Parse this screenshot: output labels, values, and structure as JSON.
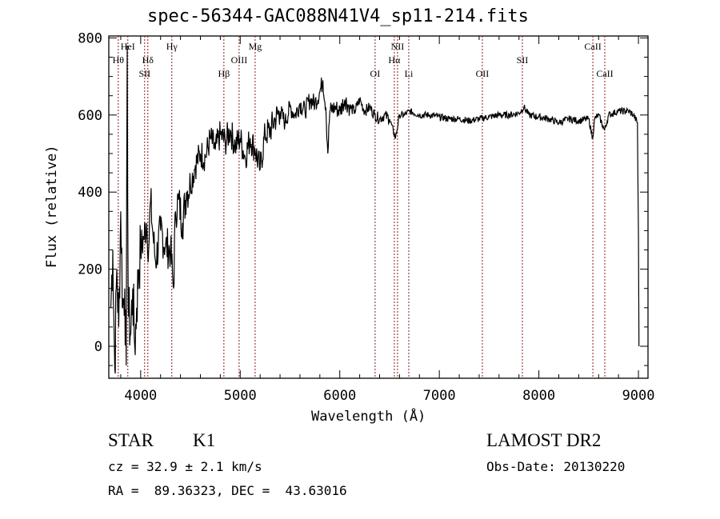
{
  "chart_data": {
    "type": "line",
    "title": "spec-56344-GAC088N41V4_sp11-214.fits",
    "xlabel": "Wavelength (Å)",
    "ylabel": "Flux (relative)",
    "xlim": [
      3680,
      9096
    ],
    "ylim": [
      -83,
      805
    ],
    "x_ticks": [
      4000,
      5000,
      6000,
      7000,
      8000,
      9000
    ],
    "x_tick_labels": [
      "4000",
      "5000",
      "6000",
      "7000",
      "8000",
      "9000"
    ],
    "y_ticks": [
      0,
      200,
      400,
      600,
      800
    ],
    "y_tick_labels": [
      "0",
      "200",
      "400",
      "600",
      "800"
    ],
    "grid": false,
    "series": [
      {
        "name": "spectrum",
        "color": "#000000",
        "x": [
          3700,
          3720,
          3740,
          3760,
          3780,
          3800,
          3820,
          3840,
          3855,
          3865,
          3875,
          3900,
          3920,
          3940,
          3960,
          3980,
          4000,
          4030,
          4060,
          4080,
          4100,
          4120,
          4150,
          4200,
          4250,
          4300,
          4330,
          4350,
          4380,
          4420,
          4460,
          4500,
          4550,
          4600,
          4650,
          4700,
          4750,
          4800,
          4850,
          4900,
          4950,
          5000,
          5050,
          5100,
          5150,
          5200,
          5250,
          5300,
          5350,
          5400,
          5450,
          5500,
          5550,
          5600,
          5650,
          5700,
          5750,
          5800,
          5830,
          5860,
          5880,
          5900,
          5950,
          6000,
          6050,
          6100,
          6150,
          6200,
          6250,
          6300,
          6350,
          6400,
          6450,
          6500,
          6560,
          6600,
          6650,
          6700,
          6800,
          6900,
          7000,
          7100,
          7200,
          7300,
          7400,
          7500,
          7600,
          7700,
          7800,
          7850,
          7900,
          8000,
          8100,
          8200,
          8300,
          8400,
          8500,
          8540,
          8560,
          8600,
          8660,
          8700,
          8800,
          8900,
          8950,
          8990,
          9000,
          9005
        ],
        "y": [
          100,
          250,
          -60,
          200,
          50,
          350,
          100,
          150,
          -50,
          780,
          100,
          30,
          150,
          0,
          100,
          200,
          250,
          280,
          320,
          250,
          380,
          300,
          220,
          300,
          260,
          250,
          150,
          350,
          380,
          320,
          400,
          420,
          470,
          500,
          490,
          540,
          510,
          550,
          530,
          560,
          520,
          540,
          490,
          540,
          510,
          460,
          550,
          560,
          590,
          610,
          580,
          620,
          600,
          630,
          610,
          640,
          630,
          660,
          690,
          620,
          500,
          610,
          620,
          610,
          640,
          620,
          610,
          640,
          610,
          620,
          600,
          590,
          600,
          590,
          540,
          600,
          600,
          610,
          600,
          600,
          595,
          590,
          590,
          585,
          590,
          595,
          600,
          600,
          605,
          620,
          600,
          595,
          590,
          580,
          590,
          585,
          590,
          540,
          590,
          600,
          560,
          600,
          610,
          610,
          600,
          580,
          280,
          0
        ]
      }
    ],
    "line_markers": [
      {
        "label": "Hθ",
        "wavelength": 3775
      },
      {
        "label": "HeI",
        "wavelength": 3871
      },
      {
        "label": "SII",
        "wavelength": 4040
      },
      {
        "label": "Hδ",
        "wavelength": 4072
      },
      {
        "label": "Hγ",
        "wavelength": 4313
      },
      {
        "label": "Hβ",
        "wavelength": 4836
      },
      {
        "label": "OIII",
        "wavelength": 4989
      },
      {
        "label": "Mg",
        "wavelength": 5150
      },
      {
        "label": "OI",
        "wavelength": 6355
      },
      {
        "label": "Hα",
        "wavelength": 6548
      },
      {
        "label": "NII",
        "wavelength": 6580
      },
      {
        "label": "Li",
        "wavelength": 6693
      },
      {
        "label": "OII",
        "wavelength": 7432
      },
      {
        "label": "SII",
        "wavelength": 7834
      },
      {
        "label": "CaII",
        "wavelength": 8542
      },
      {
        "label": "CaII",
        "wavelength": 8662
      }
    ],
    "marker_color": "#8b1a1a"
  },
  "info": {
    "class": "STAR",
    "subclass": "K1",
    "survey": "LAMOST DR2",
    "cz": "cz = 32.9 ± 2.1 km/s",
    "obs_date": "Obs-Date: 20130220",
    "coords": "RA =  89.36323, DEC =  43.63016"
  }
}
